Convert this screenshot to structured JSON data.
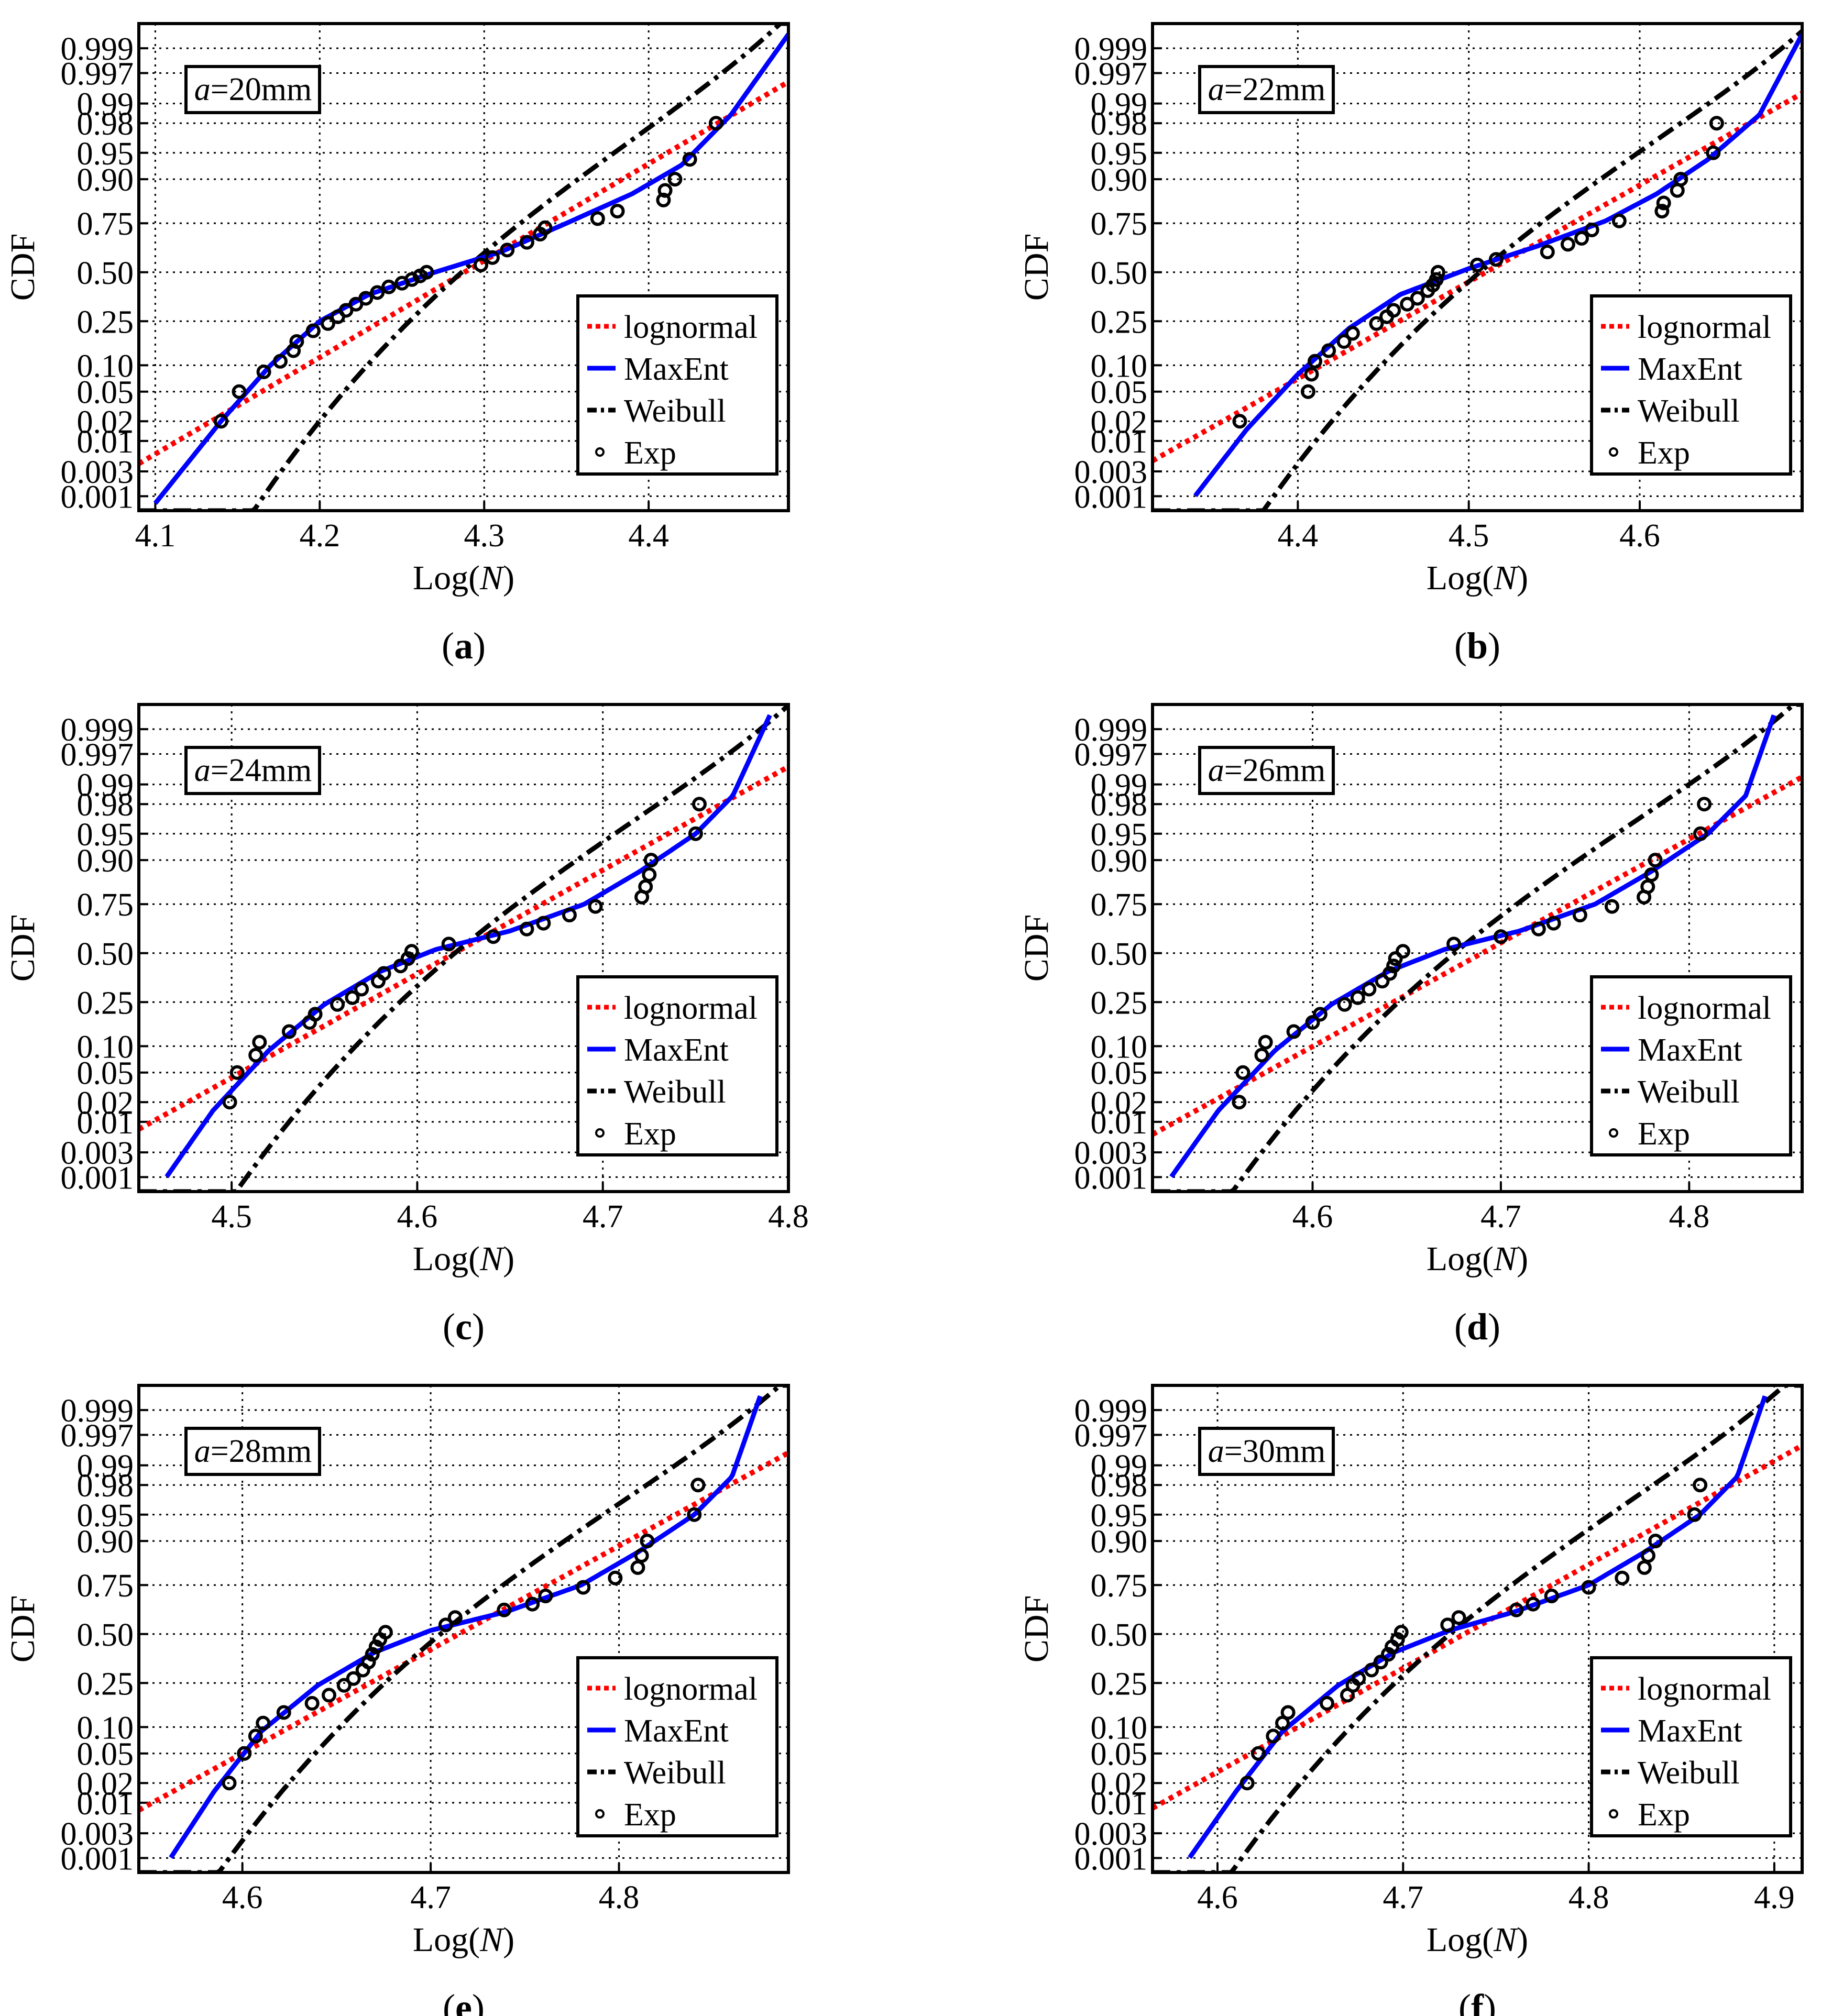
{
  "figure": {
    "ylabel": "CDF",
    "xlabel_prefix": "Log(",
    "xlabel_var": "N",
    "xlabel_suffix": ")",
    "y_ticks": [
      {
        "p": 0.001,
        "label": "0.001"
      },
      {
        "p": 0.003,
        "label": "0.003"
      },
      {
        "p": 0.01,
        "label": "0.01"
      },
      {
        "p": 0.02,
        "label": "0.02"
      },
      {
        "p": 0.05,
        "label": "0.05"
      },
      {
        "p": 0.1,
        "label": "0.10"
      },
      {
        "p": 0.25,
        "label": "0.25"
      },
      {
        "p": 0.5,
        "label": "0.50"
      },
      {
        "p": 0.75,
        "label": "0.75"
      },
      {
        "p": 0.9,
        "label": "0.90"
      },
      {
        "p": 0.95,
        "label": "0.95"
      },
      {
        "p": 0.98,
        "label": "0.98"
      },
      {
        "p": 0.99,
        "label": "0.99"
      },
      {
        "p": 0.997,
        "label": "0.997"
      },
      {
        "p": 0.999,
        "label": "0.999"
      }
    ],
    "legend": [
      {
        "label": "lognormal",
        "style": "dotted",
        "color": "#ff0000"
      },
      {
        "label": "MaxEnt",
        "style": "solid",
        "color": "#0000ff"
      },
      {
        "label": "Weibull",
        "style": "dashdot",
        "color": "#000000"
      },
      {
        "label": "Exp",
        "style": "marker",
        "color": "#000000"
      }
    ],
    "colors": {
      "lognormal": "#ff0000",
      "maxent": "#0000ff",
      "weibull": "#000000",
      "exp": "#000000",
      "grid": "#000000"
    }
  },
  "chart_data": [
    {
      "panel": "(a)",
      "letter": "a",
      "type": "line",
      "annotation": {
        "var": "a",
        "text": "=20mm"
      },
      "title": "",
      "xlabel": "Log(N)",
      "ylabel": "CDF",
      "xlim": [
        4.09,
        4.485
      ],
      "x_ticks": [
        {
          "v": 4.1,
          "label": "4.1"
        },
        {
          "v": 4.2,
          "label": "4.2"
        },
        {
          "v": 4.3,
          "label": "4.3"
        },
        {
          "v": 4.4,
          "label": "4.4"
        }
      ],
      "lognormal": {
        "mu": 4.288,
        "sigma": 0.075
      },
      "weibull": {
        "xmax": 4.56,
        "k": 6.3,
        "lambda": 0.29
      },
      "maxent": {
        "x": [
          4.1,
          4.14,
          4.17,
          4.2,
          4.23,
          4.27,
          4.31,
          4.35,
          4.39,
          4.42,
          4.45,
          4.485
        ],
        "p": [
          0.0007,
          0.02,
          0.1,
          0.25,
          0.38,
          0.5,
          0.61,
          0.75,
          0.86,
          0.93,
          0.985,
          0.9995
        ]
      },
      "exp": {
        "x": [
          4.14,
          4.151,
          4.166,
          4.176,
          4.184,
          4.186,
          4.196,
          4.205,
          4.211,
          4.216,
          4.222,
          4.228,
          4.235,
          4.242,
          4.25,
          4.256,
          4.261,
          4.265,
          4.298,
          4.305,
          4.314,
          4.326,
          4.334,
          4.337,
          4.369,
          4.381,
          4.409,
          4.41,
          4.416,
          4.425,
          4.441
        ],
        "p": [
          0.02,
          0.05,
          0.085,
          0.11,
          0.14,
          0.17,
          0.21,
          0.24,
          0.27,
          0.3,
          0.33,
          0.36,
          0.39,
          0.42,
          0.44,
          0.46,
          0.48,
          0.5,
          0.54,
          0.58,
          0.62,
          0.66,
          0.7,
          0.73,
          0.77,
          0.8,
          0.84,
          0.87,
          0.9,
          0.94,
          0.98
        ]
      },
      "legend_position": "lower-right"
    },
    {
      "panel": "(b)",
      "letter": "b",
      "type": "line",
      "annotation": {
        "var": "a",
        "text": "=22mm"
      },
      "title": "",
      "xlabel": "Log(N)",
      "ylabel": "CDF",
      "xlim": [
        4.315,
        4.695
      ],
      "x_ticks": [
        {
          "v": 4.4,
          "label": "4.4"
        },
        {
          "v": 4.5,
          "label": "4.5"
        },
        {
          "v": 4.6,
          "label": "4.6"
        }
      ],
      "lognormal": {
        "mu": 4.51,
        "sigma": 0.075
      },
      "weibull": {
        "xmax": 4.78,
        "k": 6.3,
        "lambda": 0.29
      },
      "maxent": {
        "x": [
          4.34,
          4.37,
          4.4,
          4.43,
          4.46,
          4.5,
          4.54,
          4.58,
          4.61,
          4.64,
          4.67,
          4.695
        ],
        "p": [
          0.001,
          0.015,
          0.08,
          0.22,
          0.38,
          0.52,
          0.64,
          0.76,
          0.86,
          0.94,
          0.985,
          0.9995
        ]
      },
      "exp": {
        "x": [
          4.366,
          4.406,
          4.408,
          4.41,
          4.418,
          4.427,
          4.432,
          4.446,
          4.452,
          4.456,
          4.464,
          4.47,
          4.476,
          4.479,
          4.481,
          4.482,
          4.505,
          4.516,
          4.546,
          4.558,
          4.566,
          4.572,
          4.588,
          4.613,
          4.614,
          4.622,
          4.624,
          4.643,
          4.645
        ],
        "p": [
          0.02,
          0.05,
          0.08,
          0.11,
          0.14,
          0.17,
          0.2,
          0.24,
          0.27,
          0.3,
          0.33,
          0.36,
          0.4,
          0.43,
          0.46,
          0.5,
          0.54,
          0.57,
          0.61,
          0.65,
          0.68,
          0.72,
          0.76,
          0.8,
          0.83,
          0.87,
          0.9,
          0.95,
          0.98
        ]
      },
      "legend_position": "lower-right"
    },
    {
      "panel": "(c)",
      "letter": "c",
      "type": "line",
      "annotation": {
        "var": "a",
        "text": "=24mm"
      },
      "title": "",
      "xlabel": "Log(N)",
      "ylabel": "CDF",
      "xlim": [
        4.45,
        4.8
      ],
      "x_ticks": [
        {
          "v": 4.5,
          "label": "4.5"
        },
        {
          "v": 4.6,
          "label": "4.6"
        },
        {
          "v": 4.7,
          "label": "4.7"
        },
        {
          "v": 4.8,
          "label": "4.8"
        }
      ],
      "lognormal": {
        "mu": 4.62,
        "sigma": 0.07
      },
      "weibull": {
        "xmax": 4.875,
        "k": 6.3,
        "lambda": 0.27
      },
      "maxent": {
        "x": [
          4.465,
          4.49,
          4.52,
          4.55,
          4.58,
          4.61,
          4.65,
          4.69,
          4.72,
          4.75,
          4.77,
          4.79
        ],
        "p": [
          0.001,
          0.015,
          0.09,
          0.24,
          0.4,
          0.52,
          0.62,
          0.75,
          0.87,
          0.95,
          0.985,
          0.9995
        ]
      },
      "exp": {
        "x": [
          4.499,
          4.503,
          4.513,
          4.515,
          4.531,
          4.542,
          4.545,
          4.557,
          4.565,
          4.57,
          4.579,
          4.582,
          4.591,
          4.595,
          4.597,
          4.617,
          4.641,
          4.659,
          4.668,
          4.682,
          4.696,
          4.721,
          4.723,
          4.725,
          4.726,
          4.75,
          4.752
        ],
        "p": [
          0.02,
          0.05,
          0.08,
          0.11,
          0.14,
          0.17,
          0.2,
          0.24,
          0.27,
          0.31,
          0.35,
          0.39,
          0.43,
          0.47,
          0.51,
          0.55,
          0.59,
          0.63,
          0.66,
          0.7,
          0.74,
          0.78,
          0.82,
          0.86,
          0.9,
          0.95,
          0.98
        ]
      },
      "legend_position": "lower-right"
    },
    {
      "panel": "(d)",
      "letter": "d",
      "type": "line",
      "annotation": {
        "var": "a",
        "text": "=26mm"
      },
      "title": "",
      "xlabel": "Log(N)",
      "ylabel": "CDF",
      "xlim": [
        4.515,
        4.86
      ],
      "x_ticks": [
        {
          "v": 4.6,
          "label": "4.6"
        },
        {
          "v": 4.7,
          "label": "4.7"
        },
        {
          "v": 4.8,
          "label": "4.8"
        }
      ],
      "lognormal": {
        "mu": 4.69,
        "sigma": 0.07
      },
      "weibull": {
        "xmax": 4.93,
        "k": 6.3,
        "lambda": 0.27
      },
      "maxent": {
        "x": [
          4.525,
          4.55,
          4.58,
          4.61,
          4.64,
          4.67,
          4.71,
          4.75,
          4.78,
          4.81,
          4.83,
          4.845
        ],
        "p": [
          0.001,
          0.015,
          0.09,
          0.24,
          0.4,
          0.52,
          0.62,
          0.75,
          0.87,
          0.95,
          0.985,
          0.9995
        ]
      },
      "exp": {
        "x": [
          4.561,
          4.563,
          4.573,
          4.575,
          4.59,
          4.6,
          4.604,
          4.617,
          4.624,
          4.63,
          4.637,
          4.641,
          4.643,
          4.644,
          4.648,
          4.675,
          4.7,
          4.72,
          4.728,
          4.742,
          4.759,
          4.776,
          4.778,
          4.78,
          4.782,
          4.806,
          4.808
        ],
        "p": [
          0.02,
          0.05,
          0.08,
          0.11,
          0.14,
          0.17,
          0.2,
          0.24,
          0.27,
          0.31,
          0.35,
          0.39,
          0.43,
          0.47,
          0.51,
          0.55,
          0.59,
          0.63,
          0.66,
          0.7,
          0.74,
          0.78,
          0.82,
          0.86,
          0.9,
          0.95,
          0.98
        ]
      },
      "legend_position": "lower-right"
    },
    {
      "panel": "(e)",
      "letter": "e",
      "type": "line",
      "annotation": {
        "var": "a",
        "text": "=28mm"
      },
      "title": "",
      "xlabel": "Log(N)",
      "ylabel": "CDF",
      "xlim": [
        4.545,
        4.89
      ],
      "x_ticks": [
        {
          "v": 4.6,
          "label": "4.6"
        },
        {
          "v": 4.7,
          "label": "4.7"
        },
        {
          "v": 4.8,
          "label": "4.8"
        }
      ],
      "lognormal": {
        "mu": 4.715,
        "sigma": 0.07
      },
      "weibull": {
        "xmax": 4.96,
        "k": 6.3,
        "lambda": 0.27
      },
      "maxent": {
        "x": [
          4.562,
          4.585,
          4.61,
          4.64,
          4.67,
          4.7,
          4.74,
          4.78,
          4.81,
          4.84,
          4.86,
          4.875
        ],
        "p": [
          0.001,
          0.015,
          0.09,
          0.24,
          0.4,
          0.52,
          0.62,
          0.75,
          0.87,
          0.95,
          0.985,
          0.9995
        ]
      },
      "exp": {
        "x": [
          4.593,
          4.601,
          4.607,
          4.611,
          4.622,
          4.637,
          4.646,
          4.654,
          4.659,
          4.664,
          4.667,
          4.669,
          4.671,
          4.673,
          4.676,
          4.708,
          4.713,
          4.739,
          4.754,
          4.761,
          4.781,
          4.798,
          4.81,
          4.812,
          4.815,
          4.84,
          4.842
        ],
        "p": [
          0.02,
          0.05,
          0.08,
          0.11,
          0.14,
          0.17,
          0.2,
          0.24,
          0.27,
          0.31,
          0.35,
          0.39,
          0.43,
          0.47,
          0.51,
          0.55,
          0.59,
          0.63,
          0.66,
          0.7,
          0.74,
          0.78,
          0.82,
          0.86,
          0.9,
          0.95,
          0.98
        ]
      },
      "legend_position": "lower-right"
    },
    {
      "panel": "(f)",
      "letter": "f",
      "type": "line",
      "annotation": {
        "var": "a",
        "text": "=30mm"
      },
      "title": "",
      "xlabel": "Log(N)",
      "ylabel": "CDF",
      "xlim": [
        4.565,
        4.915
      ],
      "x_ticks": [
        {
          "v": 4.6,
          "label": "4.6"
        },
        {
          "v": 4.7,
          "label": "4.7"
        },
        {
          "v": 4.8,
          "label": "4.8"
        },
        {
          "v": 4.9,
          "label": "4.9"
        }
      ],
      "lognormal": {
        "mu": 4.733,
        "sigma": 0.07
      },
      "weibull": {
        "xmax": 4.98,
        "k": 6.3,
        "lambda": 0.27
      },
      "maxent": {
        "x": [
          4.585,
          4.61,
          4.635,
          4.665,
          4.695,
          4.725,
          4.76,
          4.8,
          4.83,
          4.86,
          4.88,
          4.895
        ],
        "p": [
          0.001,
          0.015,
          0.09,
          0.24,
          0.4,
          0.52,
          0.62,
          0.75,
          0.87,
          0.95,
          0.985,
          0.9995
        ]
      },
      "exp": {
        "x": [
          4.616,
          4.622,
          4.63,
          4.635,
          4.638,
          4.659,
          4.67,
          4.673,
          4.676,
          4.683,
          4.688,
          4.692,
          4.694,
          4.697,
          4.699,
          4.724,
          4.73,
          4.761,
          4.77,
          4.78,
          4.8,
          4.818,
          4.83,
          4.832,
          4.836,
          4.857,
          4.86
        ],
        "p": [
          0.02,
          0.05,
          0.08,
          0.11,
          0.14,
          0.17,
          0.2,
          0.24,
          0.27,
          0.31,
          0.35,
          0.39,
          0.43,
          0.47,
          0.51,
          0.55,
          0.59,
          0.63,
          0.66,
          0.7,
          0.74,
          0.78,
          0.82,
          0.86,
          0.9,
          0.95,
          0.98
        ]
      },
      "legend_position": "lower-right"
    }
  ]
}
